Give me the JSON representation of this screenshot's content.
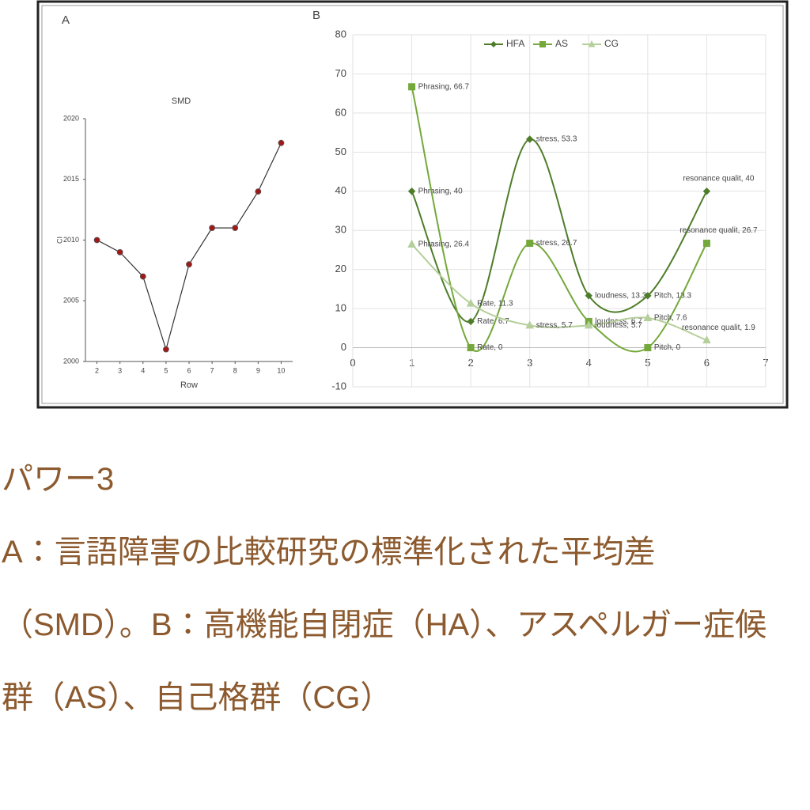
{
  "chart_data": [
    {
      "type": "line",
      "panel": "A",
      "title": "SMD",
      "x_label": "Row",
      "y_label": "CI",
      "x": [
        2,
        3,
        4,
        5,
        6,
        7,
        8,
        9,
        10
      ],
      "values": [
        2010,
        2009,
        2007,
        2001,
        2008,
        2011,
        2011,
        2014,
        2018
      ],
      "color": "#333333",
      "marker_color": "#a01818",
      "marker": "circle",
      "xlim": [
        1.5,
        10.5
      ],
      "xticks": [
        2,
        3,
        4,
        5,
        6,
        7,
        8,
        9,
        10
      ],
      "ylim": [
        2000,
        2020
      ],
      "yticks": [
        2000,
        2005,
        2010,
        2015,
        2020
      ],
      "grid": false
    },
    {
      "type": "line",
      "panel": "B",
      "smooth": true,
      "grid": true,
      "legend": "top",
      "x": [
        1,
        2,
        3,
        4,
        5,
        6
      ],
      "series": [
        {
          "name": "HFA",
          "color": "#4e7d2a",
          "marker": "diamond",
          "values": [
            40,
            6.7,
            53.3,
            13.3,
            13.3,
            40
          ],
          "value_labels": [
            "Phrasing, 40",
            "Rate, 6.7",
            "stress, 53.3",
            "loudness, 13.3",
            "Pitch, 13.3",
            "resonance qualit, 40"
          ]
        },
        {
          "name": "AS",
          "color": "#74a83a",
          "marker": "square",
          "values": [
            66.7,
            0,
            26.7,
            6.7,
            0,
            26.7
          ],
          "value_labels": [
            "Phrasing, 66.7",
            "Rate, 0",
            "stress, 26.7",
            "loudness, 6.7",
            "Pitch, 0",
            "resonance qualit, 26.7"
          ]
        },
        {
          "name": "CG",
          "color": "#b5cf9a",
          "marker": "triangle",
          "values": [
            26.4,
            11.3,
            5.7,
            5.7,
            7.6,
            1.9
          ],
          "value_labels": [
            "Phrasing, 26.4",
            "Rate, 11.3",
            "stress, 5.7",
            "loudness, 5.7",
            "Pitch, 7.6",
            "resonance qualit, 1.9"
          ]
        }
      ],
      "xlim": [
        0,
        7
      ],
      "xticks": [
        0,
        1,
        2,
        3,
        4,
        5,
        6,
        7
      ],
      "ylim": [
        -10,
        80
      ],
      "yticks": [
        -10,
        0,
        10,
        20,
        30,
        40,
        50,
        60,
        70,
        80
      ]
    }
  ],
  "caption": {
    "title": "パワー3",
    "text": "A：言語障害の比較研究の標準化された平均差（SMD）。B：高機能自閉症（HA）、アスペルガー症候群（AS）、自己格群（CG）"
  }
}
